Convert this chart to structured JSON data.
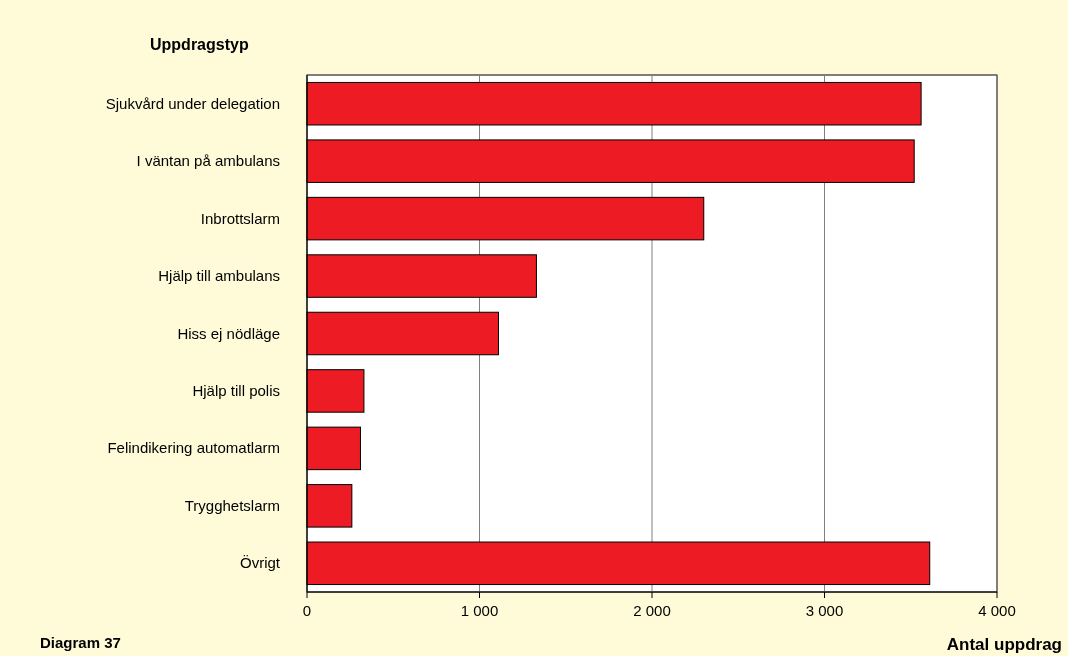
{
  "chart_data": {
    "type": "bar",
    "orientation": "horizontal",
    "ylabel": "Uppdragstyp",
    "xlabel": "Antal uppdrag",
    "annotations": [
      "Diagram 37"
    ],
    "categories": [
      "Sjukvård under delegation",
      "I väntan på ambulans",
      "Inbrottslarm",
      "Hjälp till ambulans",
      "Hiss ej nödläge",
      "Hjälp till polis",
      "Felindikering automatlarm",
      "Trygghetslarm",
      "Övrigt"
    ],
    "values": [
      3560,
      3520,
      2300,
      1330,
      1110,
      330,
      310,
      260,
      3610
    ],
    "color": "#ed1c24",
    "xlim": [
      0,
      4000
    ],
    "xticks": [
      0,
      {
        "value": 1000,
        "label": "1 000"
      },
      {
        "value": 2000,
        "label": "2 000"
      },
      {
        "value": 3000,
        "label": "3 000"
      },
      {
        "value": 4000,
        "label": "4 000"
      }
    ],
    "grid": "x"
  }
}
